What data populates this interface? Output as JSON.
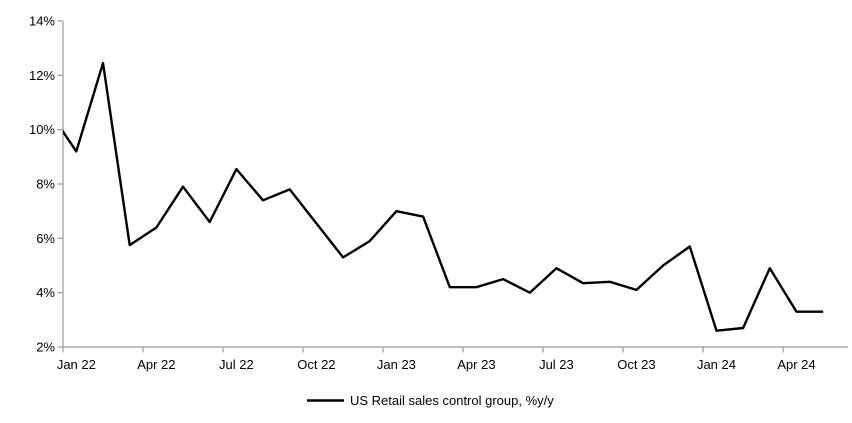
{
  "chart_data": {
    "type": "line",
    "title": "",
    "xlabel": "",
    "ylabel": "",
    "ylim": [
      2,
      14
    ],
    "grid": false,
    "legend": {
      "label": "US Retail sales control group, %y/y",
      "position": "bottom-center",
      "swatch": "solid-black-line"
    },
    "y_tick_labels": [
      "14%",
      "12%",
      "10%",
      "8%",
      "6%",
      "4%",
      "2%"
    ],
    "y_tick_values": [
      14,
      12,
      10,
      8,
      6,
      4,
      2
    ],
    "x_tick_labels": [
      "Jan 22",
      "Apr 22",
      "Jul 22",
      "Oct 22",
      "Jan 23",
      "Apr 23",
      "Jul 23",
      "Oct 23",
      "Jan 24",
      "Apr 24"
    ],
    "colors": {
      "line": "#000000",
      "axis": "#9b9b9b",
      "text": "#000000",
      "background": "#ffffff"
    },
    "series": [
      {
        "name": "US Retail sales control group, %y/y",
        "x": [
          "Dec 21",
          "Jan 22",
          "Feb 22",
          "Mar 22",
          "Apr 22",
          "May 22",
          "Jun 22",
          "Jul 22",
          "Aug 22",
          "Sep 22",
          "Oct 22",
          "Nov 22",
          "Dec 22",
          "Jan 23",
          "Feb 23",
          "Mar 23",
          "Apr 23",
          "May 23",
          "Jun 23",
          "Jul 23",
          "Aug 23",
          "Sep 23",
          "Oct 23",
          "Nov 23",
          "Dec 23",
          "Jan 24",
          "Feb 24",
          "Mar 24",
          "Apr 24",
          "May 24"
        ],
        "values": [
          10.65,
          9.2,
          12.45,
          5.75,
          6.4,
          7.9,
          6.6,
          8.55,
          7.4,
          7.8,
          6.55,
          5.3,
          5.9,
          7.0,
          6.8,
          4.2,
          4.2,
          4.5,
          4.0,
          4.9,
          4.35,
          4.4,
          4.1,
          5.0,
          5.7,
          2.6,
          2.7,
          4.9,
          3.3,
          3.3
        ],
        "note": "First point (Dec 21) lies left of the plot area; its segment enters the frame at ~9.9% and is clipped at the y-axis"
      }
    ]
  }
}
